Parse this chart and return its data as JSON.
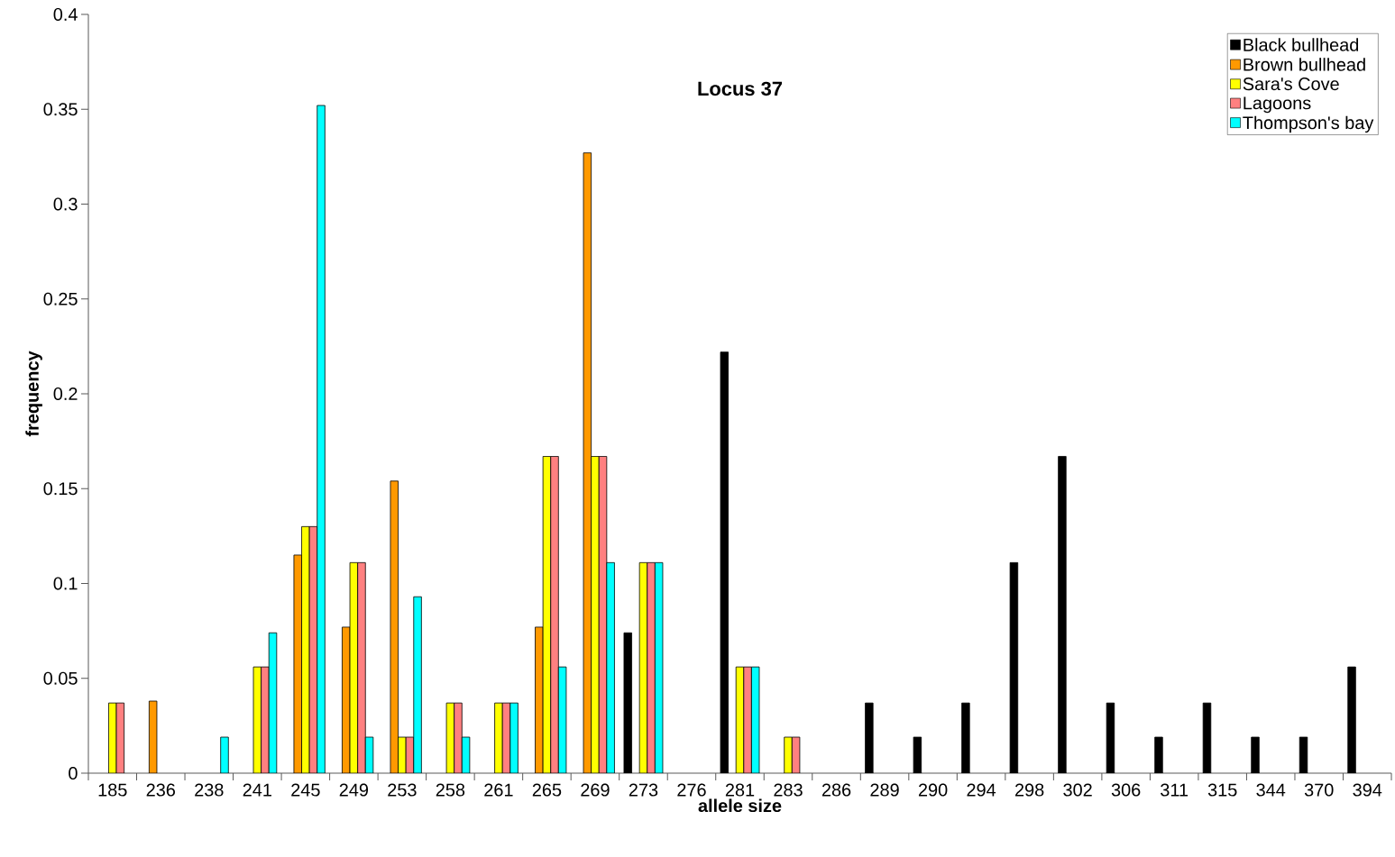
{
  "chart_data": {
    "type": "bar",
    "title": "Locus 37",
    "xlabel": "allele size",
    "ylabel": "frequency",
    "categories": [
      "185",
      "236",
      "238",
      "241",
      "245",
      "249",
      "253",
      "258",
      "261",
      "265",
      "269",
      "273",
      "276",
      "281",
      "283",
      "286",
      "289",
      "290",
      "294",
      "298",
      "302",
      "306",
      "311",
      "315",
      "344",
      "370",
      "394"
    ],
    "series": [
      {
        "name": "Black bullhead",
        "color": "#000000",
        "values": [
          null,
          null,
          null,
          null,
          null,
          null,
          null,
          null,
          null,
          null,
          null,
          0.074,
          null,
          0.222,
          null,
          null,
          0.037,
          0.019,
          0.037,
          0.111,
          0.167,
          0.037,
          0.019,
          0.037,
          0.019,
          0.019,
          0.056
        ]
      },
      {
        "name": "Brown bullhead",
        "color": "#ff9900",
        "values": [
          null,
          0.038,
          null,
          null,
          0.115,
          0.077,
          0.154,
          null,
          null,
          0.077,
          0.327,
          null,
          null,
          null,
          null,
          null,
          null,
          null,
          null,
          null,
          null,
          null,
          null,
          null,
          null,
          null,
          null
        ]
      },
      {
        "name": "Sara's Cove",
        "color": "#ffff00",
        "values": [
          0.037,
          null,
          null,
          0.056,
          0.13,
          0.111,
          0.019,
          0.037,
          0.037,
          0.167,
          0.167,
          0.111,
          null,
          0.056,
          0.019,
          null,
          null,
          null,
          null,
          null,
          null,
          null,
          null,
          null,
          null,
          null,
          null
        ]
      },
      {
        "name": "Lagoons",
        "color": "#ff8080",
        "values": [
          0.037,
          null,
          null,
          0.056,
          0.13,
          0.111,
          0.019,
          0.037,
          0.037,
          0.167,
          0.167,
          0.111,
          null,
          0.056,
          0.019,
          null,
          null,
          null,
          null,
          null,
          null,
          null,
          null,
          null,
          null,
          null,
          null
        ]
      },
      {
        "name": "Thompson's bay",
        "color": "#00ffff",
        "values": [
          null,
          null,
          0.019,
          0.074,
          0.352,
          0.019,
          0.093,
          0.019,
          0.037,
          0.056,
          0.111,
          0.111,
          null,
          0.056,
          null,
          null,
          null,
          null,
          null,
          null,
          null,
          null,
          null,
          null,
          null,
          null,
          null
        ]
      }
    ],
    "ylim": [
      0,
      0.4
    ],
    "yticks": [
      0,
      0.05,
      0.1,
      0.15,
      0.2,
      0.25,
      0.3,
      0.35,
      0.4
    ],
    "grid": false,
    "legend": "top right"
  }
}
